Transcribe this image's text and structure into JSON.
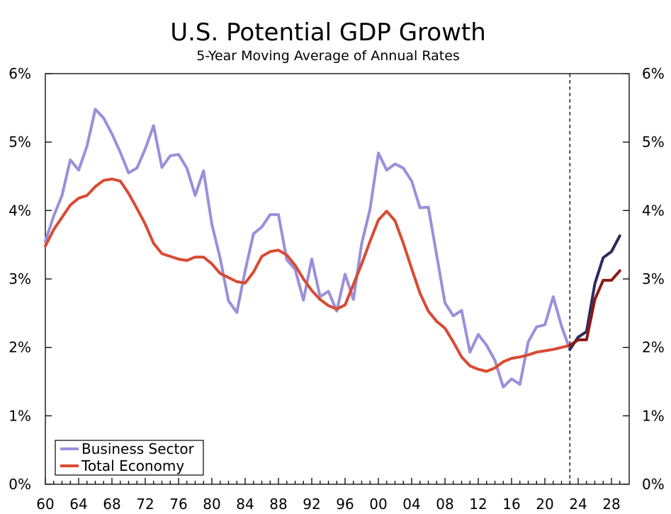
{
  "chart_data": {
    "type": "line",
    "title": "U.S. Potential GDP Growth",
    "subtitle": "5-Year Moving Average of Annual Rates",
    "xlabel": "",
    "ylabel": "",
    "xlim": [
      1960,
      2029
    ],
    "ylim": [
      0,
      6
    ],
    "y_ticks": [
      0,
      1,
      2,
      3,
      4,
      5,
      6
    ],
    "y_tick_labels": [
      "0%",
      "1%",
      "2%",
      "3%",
      "4%",
      "5%",
      "6%"
    ],
    "x_ticks": [
      1960,
      1964,
      1968,
      1972,
      1976,
      1980,
      1984,
      1988,
      1992,
      1996,
      2000,
      2004,
      2008,
      2012,
      2016,
      2020,
      2024,
      2028
    ],
    "x_tick_labels": [
      "60",
      "64",
      "68",
      "72",
      "76",
      "80",
      "84",
      "88",
      "92",
      "96",
      "00",
      "04",
      "08",
      "12",
      "16",
      "20",
      "24",
      "28"
    ],
    "forecast_start": 2023,
    "grid": false,
    "legend_position": "bottom-left",
    "series": [
      {
        "name": "Business Sector",
        "color": "#9b8fdb",
        "forecast_color": "#2e2a5e",
        "x": [
          1960,
          1961,
          1962,
          1963,
          1964,
          1965,
          1966,
          1967,
          1968,
          1969,
          1970,
          1971,
          1972,
          1973,
          1974,
          1975,
          1976,
          1977,
          1978,
          1979,
          1980,
          1981,
          1982,
          1983,
          1984,
          1985,
          1986,
          1987,
          1988,
          1989,
          1990,
          1991,
          1992,
          1993,
          1994,
          1995,
          1996,
          1997,
          1998,
          1999,
          2000,
          2001,
          2002,
          2003,
          2004,
          2005,
          2006,
          2007,
          2008,
          2009,
          2010,
          2011,
          2012,
          2013,
          2014,
          2015,
          2016,
          2017,
          2018,
          2019,
          2020,
          2021,
          2022,
          2023,
          2024,
          2025,
          2026,
          2027,
          2028,
          2029
        ],
        "values": [
          3.55,
          3.92,
          4.22,
          4.74,
          4.59,
          4.94,
          5.48,
          5.35,
          5.12,
          4.85,
          4.55,
          4.62,
          4.9,
          5.24,
          4.63,
          4.8,
          4.82,
          4.62,
          4.22,
          4.58,
          3.8,
          3.3,
          2.68,
          2.51,
          3.12,
          3.66,
          3.76,
          3.94,
          3.94,
          3.28,
          3.14,
          2.69,
          3.29,
          2.74,
          2.82,
          2.53,
          3.07,
          2.7,
          3.52,
          4.02,
          4.84,
          4.59,
          4.68,
          4.62,
          4.43,
          4.04,
          4.05,
          3.35,
          2.65,
          2.46,
          2.54,
          1.93,
          2.19,
          2.03,
          1.81,
          1.42,
          1.54,
          1.46,
          2.08,
          2.3,
          2.33,
          2.74,
          2.31,
          1.97,
          2.15,
          2.23,
          2.93,
          3.31,
          3.4,
          3.63
        ]
      },
      {
        "name": "Total Economy",
        "color": "#d94a32",
        "forecast_color": "#8b1a14",
        "x": [
          1960,
          1961,
          1962,
          1963,
          1964,
          1965,
          1966,
          1967,
          1968,
          1969,
          1970,
          1971,
          1972,
          1973,
          1974,
          1975,
          1976,
          1977,
          1978,
          1979,
          1980,
          1981,
          1982,
          1983,
          1984,
          1985,
          1986,
          1987,
          1988,
          1989,
          1990,
          1991,
          1992,
          1993,
          1994,
          1995,
          1996,
          1997,
          1998,
          1999,
          2000,
          2001,
          2002,
          2003,
          2004,
          2005,
          2006,
          2007,
          2008,
          2009,
          2010,
          2011,
          2012,
          2013,
          2014,
          2015,
          2016,
          2017,
          2018,
          2019,
          2020,
          2021,
          2022,
          2023,
          2024,
          2025,
          2026,
          2027,
          2028,
          2029
        ],
        "values": [
          3.48,
          3.72,
          3.9,
          4.08,
          4.18,
          4.22,
          4.35,
          4.44,
          4.46,
          4.43,
          4.25,
          4.03,
          3.8,
          3.52,
          3.37,
          3.33,
          3.29,
          3.27,
          3.32,
          3.32,
          3.22,
          3.08,
          3.02,
          2.96,
          2.94,
          3.1,
          3.33,
          3.4,
          3.42,
          3.35,
          3.2,
          3.0,
          2.83,
          2.7,
          2.61,
          2.56,
          2.62,
          2.92,
          3.22,
          3.55,
          3.86,
          3.99,
          3.85,
          3.52,
          3.15,
          2.79,
          2.53,
          2.38,
          2.28,
          2.08,
          1.86,
          1.73,
          1.68,
          1.65,
          1.7,
          1.79,
          1.84,
          1.86,
          1.89,
          1.93,
          1.95,
          1.97,
          2.0,
          2.03,
          2.11,
          2.11,
          2.7,
          2.98,
          2.98,
          3.12
        ]
      }
    ]
  }
}
